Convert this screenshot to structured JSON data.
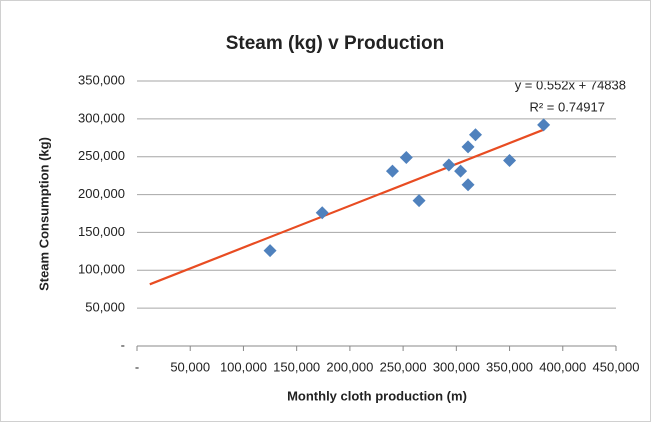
{
  "chart_data": {
    "type": "scatter",
    "title": "Steam (kg) v Production",
    "x_label": "Monthly cloth production (m)",
    "y_label": "Steam Consumption (kg)",
    "x": [
      125000,
      174000,
      240000,
      253000,
      265000,
      293000,
      304000,
      311000,
      311000,
      318000,
      350000,
      382000
    ],
    "values": [
      126000,
      176000,
      231000,
      249000,
      192000,
      239000,
      231000,
      263000,
      213000,
      279000,
      245000,
      292000
    ],
    "color": "#4f81bd",
    "trendline": {
      "x": [
        12000,
        382000
      ],
      "values": [
        81500,
        285700
      ],
      "color": "#e84c22",
      "equation": "y = 0.552x + 74838",
      "r_squared": "R² = 0.74917"
    },
    "xlim": [
      0,
      450000
    ],
    "xticks": [
      {
        "value": 0,
        "label": "-"
      },
      {
        "value": 50000,
        "label": "50,000"
      },
      {
        "value": 100000,
        "label": "100,000"
      },
      {
        "value": 150000,
        "label": "150,000"
      },
      {
        "value": 200000,
        "label": "200,000"
      },
      {
        "value": 250000,
        "label": "250,000"
      },
      {
        "value": 300000,
        "label": "300,000"
      },
      {
        "value": 350000,
        "label": "350,000"
      },
      {
        "value": 400000,
        "label": "400,000"
      },
      {
        "value": 450000,
        "label": "450,000"
      }
    ],
    "ylim": [
      0,
      350000
    ],
    "yticks": [
      {
        "value": 0,
        "label": "-"
      },
      {
        "value": 50000,
        "label": "50,000"
      },
      {
        "value": 100000,
        "label": "100,000"
      },
      {
        "value": 150000,
        "label": "150,000"
      },
      {
        "value": 200000,
        "label": "200,000"
      },
      {
        "value": 250000,
        "label": "250,000"
      },
      {
        "value": 300000,
        "label": "300,000"
      },
      {
        "value": 350000,
        "label": "350,000"
      }
    ],
    "grid": true
  }
}
